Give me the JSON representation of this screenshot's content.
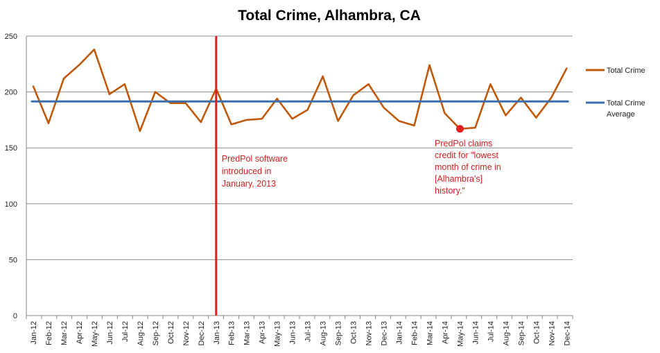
{
  "chart_data": {
    "type": "line",
    "title": "Total Crime, Alhambra, CA",
    "xlabel": "",
    "ylabel": "",
    "ylim": [
      0,
      250
    ],
    "yticks": [
      0,
      50,
      100,
      150,
      200,
      250
    ],
    "grid": true,
    "legend_position": "right",
    "categories": [
      "Jan-12",
      "Feb-12",
      "Mar-12",
      "Apr-12",
      "May-12",
      "Jun-12",
      "Jul-12",
      "Aug-12",
      "Sep-12",
      "Oct-12",
      "Nov-12",
      "Dec-12",
      "Jan-13",
      "Feb-13",
      "Mar-13",
      "Apr-13",
      "May-13",
      "Jun-13",
      "Jul-13",
      "Aug-13",
      "Sep-13",
      "Oct-13",
      "Nov-13",
      "Dec-13",
      "Jan-14",
      "Feb-14",
      "Mar-14",
      "Apr-14",
      "May-14",
      "Jun-14",
      "Jul-14",
      "Aug-14",
      "Sep-14",
      "Oct-14",
      "Nov-14",
      "Dec-14"
    ],
    "series": [
      {
        "name": "Total Crime",
        "color": "#c0580a",
        "values": [
          205,
          172,
          212,
          224,
          238,
          198,
          207,
          165,
          200,
          190,
          190,
          173,
          203,
          171,
          175,
          176,
          194,
          176,
          184,
          214,
          174,
          197,
          207,
          186,
          174,
          170,
          224,
          181,
          167,
          168,
          207,
          179,
          195,
          177,
          195,
          221
        ]
      },
      {
        "name": "Total Crime Average",
        "color": "#3a6fb0",
        "values": [
          191.5,
          191.5,
          191.5,
          191.5,
          191.5,
          191.5,
          191.5,
          191.5,
          191.5,
          191.5,
          191.5,
          191.5,
          191.5,
          191.5,
          191.5,
          191.5,
          191.5,
          191.5,
          191.5,
          191.5,
          191.5,
          191.5,
          191.5,
          191.5,
          191.5,
          191.5,
          191.5,
          191.5,
          191.5,
          191.5,
          191.5,
          191.5,
          191.5,
          191.5,
          191.5,
          191.5
        ]
      }
    ],
    "legend": [
      {
        "name": "Total Crime",
        "lines": [
          "Total Crime"
        ],
        "color": "#c0580a"
      },
      {
        "name": "Total Crime Average",
        "lines": [
          "Total Crime",
          "Average"
        ],
        "color": "#3a6fb0"
      }
    ],
    "annotations": [
      {
        "kind": "vertical-line",
        "x": "Jan-13",
        "color": "#e02020",
        "text_lines": [
          "PredPol software",
          "introduced in",
          "January, 2013"
        ]
      },
      {
        "kind": "point",
        "x": "May-14",
        "y": 167,
        "color": "#e02020",
        "text_lines": [
          "PredPol claims",
          "credit for \"lowest",
          "month of crime in",
          "[Alhambra's]",
          "history.\""
        ]
      }
    ]
  }
}
